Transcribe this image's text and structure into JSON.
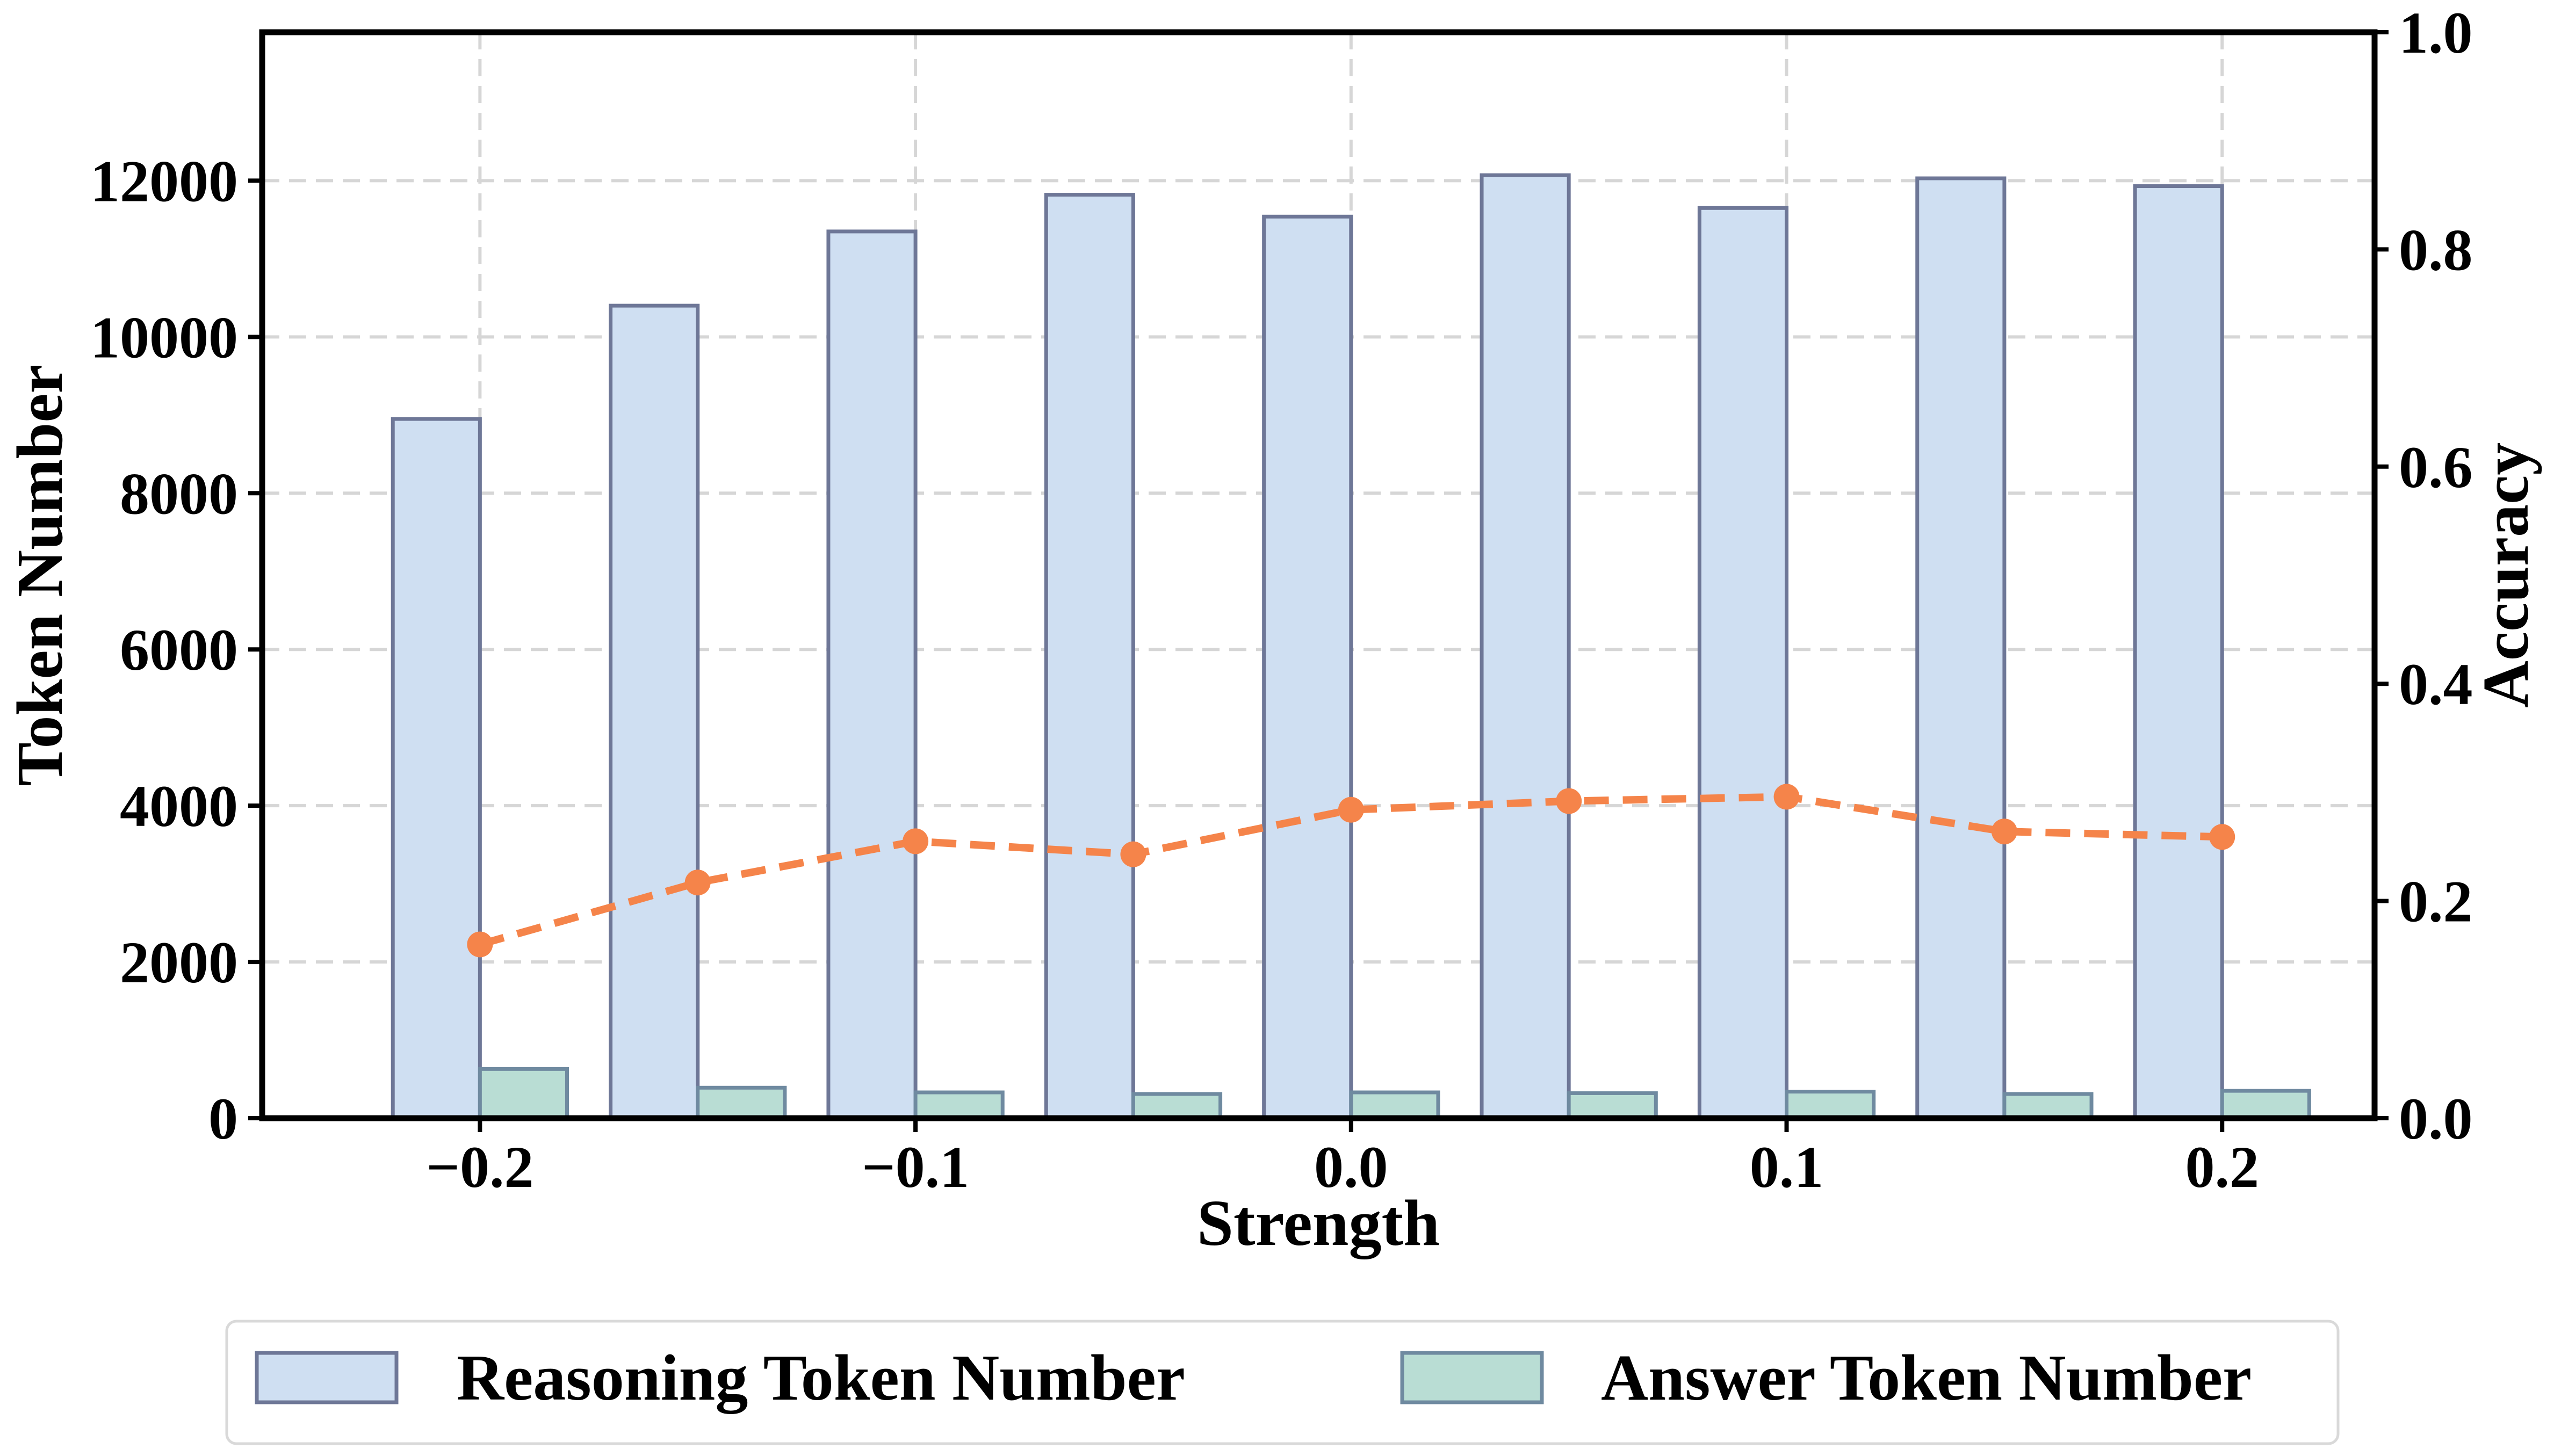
{
  "chart_data": {
    "type": "bar",
    "x": [
      -0.2,
      -0.15,
      -0.1,
      -0.05,
      0.0,
      0.05,
      0.1,
      0.15,
      0.2
    ],
    "series": [
      {
        "name": "Reasoning Token Number",
        "kind": "bar",
        "axis": "left",
        "color": "#cfdff2",
        "edge": "#6e7797",
        "values": [
          8950,
          10400,
          11350,
          11820,
          11540,
          12070,
          11650,
          12030,
          11930
        ]
      },
      {
        "name": "Answer Token Number",
        "kind": "bar",
        "axis": "left",
        "color": "#b9ddd4",
        "edge": "#6f8aa0",
        "values": [
          630,
          390,
          330,
          310,
          330,
          320,
          340,
          310,
          350
        ]
      },
      {
        "kind": "line",
        "axis": "right",
        "color": "#f5844a",
        "style": "dashed",
        "values": [
          0.16,
          0.217,
          0.255,
          0.243,
          0.284,
          0.292,
          0.296,
          0.264,
          0.259
        ]
      }
    ],
    "xlabel": "Strength",
    "ylabel": "Token Number",
    "y2label": "Accuracy",
    "xlim": [
      -0.25,
      0.235
    ],
    "ylim": [
      0,
      13900
    ],
    "y2lim": [
      0,
      1.0
    ],
    "xticks": [
      -0.2,
      -0.1,
      0.0,
      0.1,
      0.2
    ],
    "xtick_labels": [
      "−0.2",
      "−0.1",
      "0.0",
      "0.1",
      "0.2"
    ],
    "yticks": [
      0,
      2000,
      4000,
      6000,
      8000,
      10000,
      12000
    ],
    "ytick_labels": [
      "0",
      "2000",
      "4000",
      "6000",
      "8000",
      "10000",
      "12000"
    ],
    "y2ticks": [
      0,
      0.2,
      0.4,
      0.6,
      0.8,
      1.0
    ],
    "y2tick_labels": [
      "0.0",
      "0.2",
      "0.4",
      "0.6",
      "0.8",
      "1.0"
    ],
    "grid": true,
    "legend_position": "bottom-center"
  }
}
